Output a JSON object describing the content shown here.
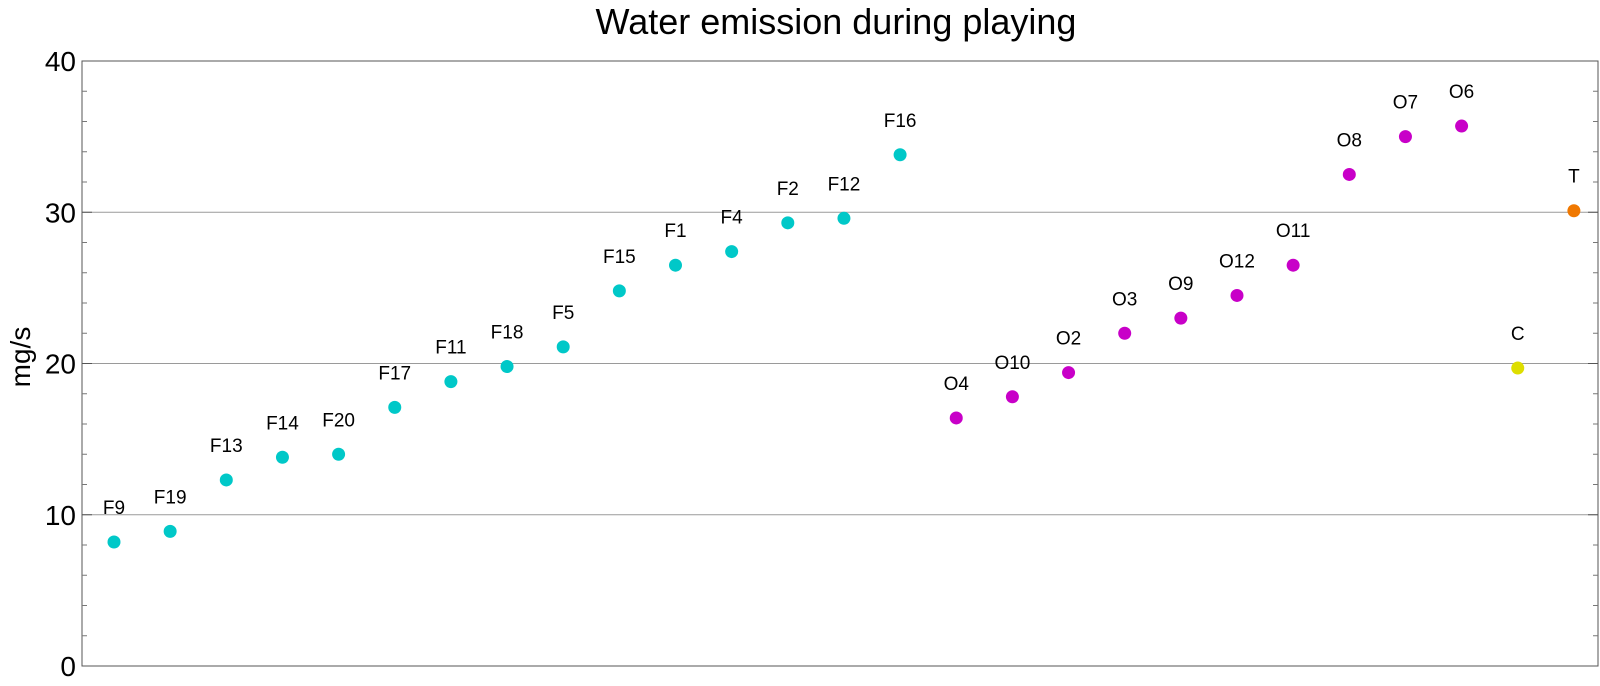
{
  "chart_data": {
    "type": "scatter",
    "title": "Water emission during playing",
    "xlabel": "",
    "ylabel": "mg/s",
    "ylim": [
      0,
      40
    ],
    "yticks": [
      0,
      10,
      20,
      30,
      40
    ],
    "grid": {
      "horizontal": true,
      "vertical": false
    },
    "points": [
      {
        "label": "F9",
        "y": 8.2,
        "color": "#00c8c8"
      },
      {
        "label": "F19",
        "y": 8.9,
        "color": "#00c8c8"
      },
      {
        "label": "F13",
        "y": 12.3,
        "color": "#00c8c8"
      },
      {
        "label": "F14",
        "y": 13.8,
        "color": "#00c8c8"
      },
      {
        "label": "F20",
        "y": 14.0,
        "color": "#00c8c8"
      },
      {
        "label": "F17",
        "y": 17.1,
        "color": "#00c8c8"
      },
      {
        "label": "F11",
        "y": 18.8,
        "color": "#00c8c8"
      },
      {
        "label": "F18",
        "y": 19.8,
        "color": "#00c8c8"
      },
      {
        "label": "F5",
        "y": 21.1,
        "color": "#00c8c8"
      },
      {
        "label": "F15",
        "y": 24.8,
        "color": "#00c8c8"
      },
      {
        "label": "F1",
        "y": 26.5,
        "color": "#00c8c8"
      },
      {
        "label": "F4",
        "y": 27.4,
        "color": "#00c8c8"
      },
      {
        "label": "F2",
        "y": 29.3,
        "color": "#00c8c8"
      },
      {
        "label": "F12",
        "y": 29.6,
        "color": "#00c8c8"
      },
      {
        "label": "F16",
        "y": 33.8,
        "color": "#00c8c8"
      },
      {
        "label": "O4",
        "y": 16.4,
        "color": "#c800c8"
      },
      {
        "label": "O10",
        "y": 17.8,
        "color": "#c800c8"
      },
      {
        "label": "O2",
        "y": 19.4,
        "color": "#c800c8"
      },
      {
        "label": "O3",
        "y": 22.0,
        "color": "#c800c8"
      },
      {
        "label": "O9",
        "y": 23.0,
        "color": "#c800c8"
      },
      {
        "label": "O12",
        "y": 24.5,
        "color": "#c800c8"
      },
      {
        "label": "O11",
        "y": 26.5,
        "color": "#c800c8"
      },
      {
        "label": "O8",
        "y": 32.5,
        "color": "#c800c8"
      },
      {
        "label": "O7",
        "y": 35.0,
        "color": "#c800c8"
      },
      {
        "label": "O6",
        "y": 35.7,
        "color": "#c800c8"
      },
      {
        "label": "C",
        "y": 19.7,
        "color": "#dede00"
      },
      {
        "label": "T",
        "y": 30.1,
        "color": "#f07800"
      }
    ]
  }
}
